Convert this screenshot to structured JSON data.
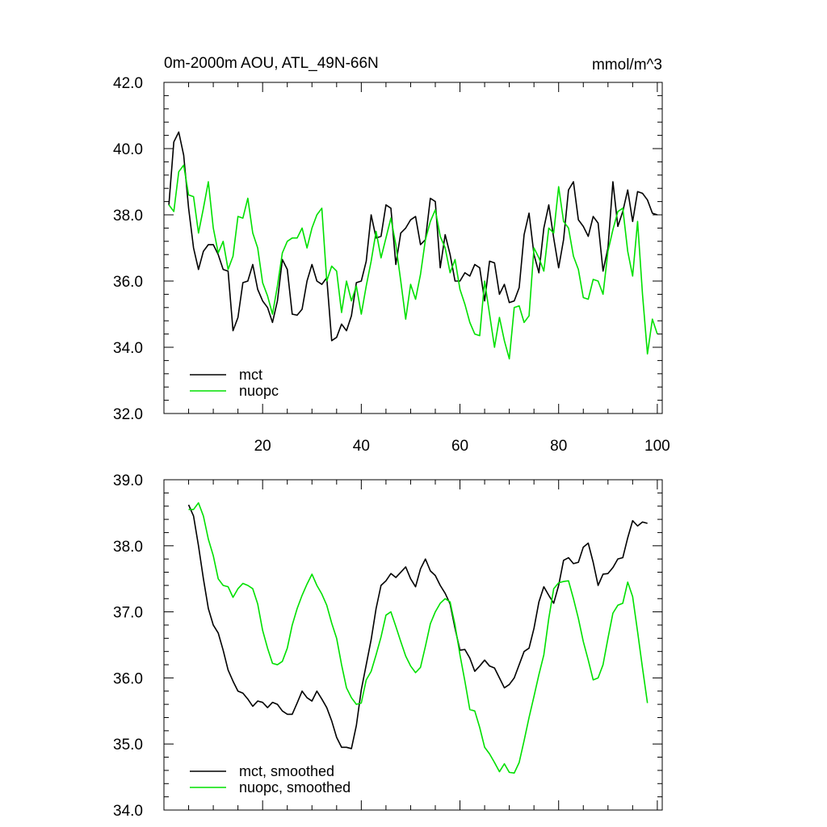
{
  "colors": {
    "mct": "#000000",
    "nuopc": "#00e000",
    "frame": "#000000",
    "background": "#ffffff"
  },
  "chart_data": [
    {
      "type": "line",
      "title": "0m-2000m AOU, ATL_49N-66N",
      "units": "mmol/m^3",
      "xlabel": "",
      "ylabel": "",
      "xlim": [
        0,
        101
      ],
      "ylim": [
        32.0,
        42.0
      ],
      "x_ticks": [
        20,
        40,
        60,
        80,
        100
      ],
      "x_tick_labels": [
        "20",
        "40",
        "60",
        "80",
        "100"
      ],
      "y_ticks": [
        32,
        34,
        36,
        38,
        40,
        42
      ],
      "y_tick_labels": [
        "32.0",
        "34.0",
        "36.0",
        "38.0",
        "40.0",
        "42.0"
      ],
      "legend_position": "bottom-left",
      "series": [
        {
          "name": "mct",
          "color": "#000000",
          "x_start": 1,
          "values": [
            38.3,
            40.2,
            40.5,
            39.8,
            38.2,
            37.0,
            36.35,
            36.9,
            37.1,
            37.1,
            36.8,
            36.35,
            36.3,
            34.5,
            34.9,
            35.95,
            36.0,
            36.5,
            35.75,
            35.4,
            35.2,
            34.75,
            35.4,
            36.65,
            36.35,
            35.0,
            34.97,
            35.15,
            36.0,
            36.5,
            36.0,
            35.9,
            36.1,
            34.2,
            34.3,
            34.7,
            34.5,
            34.95,
            35.95,
            36.0,
            36.6,
            38.0,
            37.3,
            37.35,
            38.3,
            38.2,
            36.5,
            37.45,
            37.6,
            37.85,
            37.95,
            37.1,
            37.25,
            38.5,
            38.4,
            36.4,
            37.4,
            36.8,
            36.0,
            36.0,
            36.25,
            36.15,
            36.5,
            36.4,
            35.4,
            36.6,
            36.55,
            35.6,
            35.9,
            35.35,
            35.4,
            35.8,
            37.4,
            38.05,
            36.8,
            36.25,
            37.6,
            38.3,
            37.3,
            36.4,
            37.25,
            38.75,
            39.0,
            37.85,
            37.65,
            37.35,
            37.95,
            37.75,
            36.3,
            37.0,
            39.0,
            37.65,
            38.1,
            38.75,
            37.8,
            38.7,
            38.65,
            38.45,
            38.05,
            38.0
          ]
        },
        {
          "name": "nuopc",
          "color": "#00e000",
          "x_start": 1,
          "values": [
            38.3,
            38.1,
            39.3,
            39.5,
            38.6,
            38.55,
            37.45,
            38.2,
            39.0,
            37.6,
            36.85,
            37.2,
            36.35,
            36.75,
            37.95,
            37.9,
            38.5,
            37.45,
            37.0,
            35.95,
            35.55,
            35.0,
            35.85,
            36.85,
            37.2,
            37.3,
            37.3,
            37.6,
            37.0,
            37.6,
            38.0,
            38.2,
            36.0,
            36.45,
            36.3,
            35.05,
            36.0,
            35.4,
            35.85,
            35.0,
            35.85,
            36.6,
            37.5,
            36.7,
            37.3,
            37.9,
            37.1,
            36.0,
            34.85,
            35.9,
            35.45,
            36.2,
            37.25,
            37.8,
            38.15,
            37.35,
            37.0,
            36.25,
            36.65,
            35.75,
            35.3,
            34.75,
            34.4,
            34.35,
            36.0,
            35.0,
            34.0,
            34.9,
            34.2,
            33.65,
            35.2,
            35.25,
            34.75,
            34.95,
            37.0,
            36.7,
            36.3,
            37.6,
            37.45,
            38.85,
            37.8,
            37.6,
            36.75,
            36.35,
            35.5,
            35.45,
            36.05,
            36.0,
            35.6,
            36.9,
            37.55,
            38.1,
            38.2,
            36.9,
            36.15,
            37.8,
            35.6,
            33.8,
            34.85,
            34.4
          ]
        }
      ]
    },
    {
      "type": "line",
      "title": "",
      "xlabel": "",
      "ylabel": "",
      "xlim": [
        0,
        101
      ],
      "ylim": [
        34.0,
        39.0
      ],
      "x_ticks": [
        20,
        40,
        60,
        80,
        100
      ],
      "x_tick_labels": [],
      "y_ticks": [
        34,
        35,
        36,
        37,
        38,
        39
      ],
      "y_tick_labels": [
        "34.0",
        "35.0",
        "36.0",
        "37.0",
        "38.0",
        "39.0"
      ],
      "legend_position": "bottom-left",
      "series": [
        {
          "name": "mct, smoothed",
          "color": "#000000",
          "x_start": 5,
          "values": [
            38.62,
            38.45,
            38.0,
            37.5,
            37.05,
            36.8,
            36.68,
            36.42,
            36.12,
            35.95,
            35.8,
            35.77,
            35.68,
            35.57,
            35.65,
            35.63,
            35.55,
            35.63,
            35.6,
            35.5,
            35.45,
            35.45,
            35.62,
            35.8,
            35.7,
            35.65,
            35.8,
            35.68,
            35.55,
            35.35,
            35.1,
            34.95,
            34.95,
            34.93,
            35.28,
            35.82,
            36.2,
            36.58,
            37.05,
            37.4,
            37.47,
            37.58,
            37.52,
            37.6,
            37.68,
            37.5,
            37.38,
            37.65,
            37.8,
            37.62,
            37.55,
            37.4,
            37.28,
            37.12,
            36.75,
            36.42,
            36.43,
            36.3,
            36.1,
            36.18,
            36.27,
            36.18,
            36.15,
            36.0,
            35.85,
            35.9,
            36.0,
            36.2,
            36.4,
            36.45,
            36.75,
            37.15,
            37.38,
            37.25,
            37.13,
            37.4,
            37.78,
            37.82,
            37.73,
            37.75,
            37.98,
            38.04,
            37.75,
            37.4,
            37.57,
            37.58,
            37.67,
            37.8,
            37.82,
            38.12,
            38.38,
            38.3,
            38.36,
            38.34
          ]
        },
        {
          "name": "nuopc, smoothed",
          "color": "#00e000",
          "x_start": 5,
          "values": [
            38.55,
            38.55,
            38.65,
            38.45,
            38.1,
            37.85,
            37.5,
            37.4,
            37.38,
            37.22,
            37.35,
            37.43,
            37.4,
            37.35,
            37.12,
            36.72,
            36.45,
            36.22,
            36.2,
            36.25,
            36.45,
            36.8,
            37.05,
            37.25,
            37.42,
            37.57,
            37.4,
            37.27,
            37.1,
            36.83,
            36.6,
            36.2,
            35.85,
            35.7,
            35.6,
            35.62,
            35.97,
            36.1,
            36.35,
            36.62,
            36.95,
            37.0,
            36.78,
            36.55,
            36.33,
            36.18,
            36.08,
            36.16,
            36.48,
            36.82,
            37.0,
            37.13,
            37.2,
            37.15,
            36.8,
            36.35,
            35.95,
            35.52,
            35.5,
            35.25,
            34.95,
            34.85,
            34.72,
            34.58,
            34.7,
            34.57,
            34.56,
            34.72,
            35.05,
            35.4,
            35.72,
            36.05,
            36.35,
            36.9,
            37.35,
            37.44,
            37.46,
            37.47,
            37.2,
            36.9,
            36.55,
            36.27,
            35.97,
            36.0,
            36.2,
            36.6,
            36.98,
            37.1,
            37.13,
            37.45,
            37.23,
            36.7,
            36.15,
            35.62
          ]
        }
      ]
    }
  ]
}
